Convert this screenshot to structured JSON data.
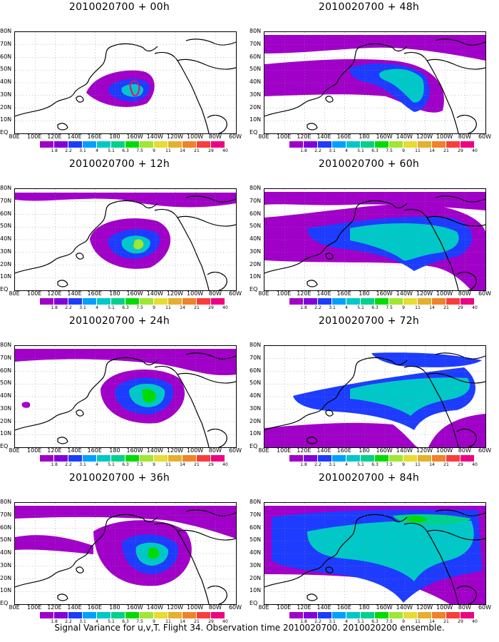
{
  "panels": [
    {
      "title": "2010020700 + 00h"
    },
    {
      "title": "2010020700 + 12h"
    },
    {
      "title": "2010020700 + 24h"
    },
    {
      "title": "2010020700 + 36h"
    },
    {
      "title": "2010020700 + 48h"
    },
    {
      "title": "2010020700 + 60h"
    },
    {
      "title": "2010020700 + 72h"
    },
    {
      "title": "2010020700 + 84h"
    }
  ],
  "lat_labels": [
    "80N",
    "70N",
    "60N",
    "50N",
    "40N",
    "30N",
    "20N",
    "10N",
    "EQ"
  ],
  "lon_labels": [
    "80E",
    "100E",
    "120E",
    "140E",
    "160E",
    "180",
    "160W",
    "140W",
    "120W",
    "100W",
    "80W",
    "60W"
  ],
  "colorbar": {
    "labels": [
      "1.8",
      "2.2",
      "3.1",
      "4",
      "5.1",
      "6.3",
      "7.5",
      "9",
      "11",
      "14",
      "21",
      "29",
      "40"
    ],
    "colors": [
      "#a000c8",
      "#8200dc",
      "#1e3cff",
      "#00a0ff",
      "#00c8c8",
      "#00d28c",
      "#00dc00",
      "#a0e632",
      "#e6dc32",
      "#e6af2d",
      "#f08228",
      "#fa3c3c",
      "#f00082"
    ]
  },
  "footer": "Signal Variance for u,v,T. Flight 34. Observation time 2010020700. 2010020200 ensemble."
}
